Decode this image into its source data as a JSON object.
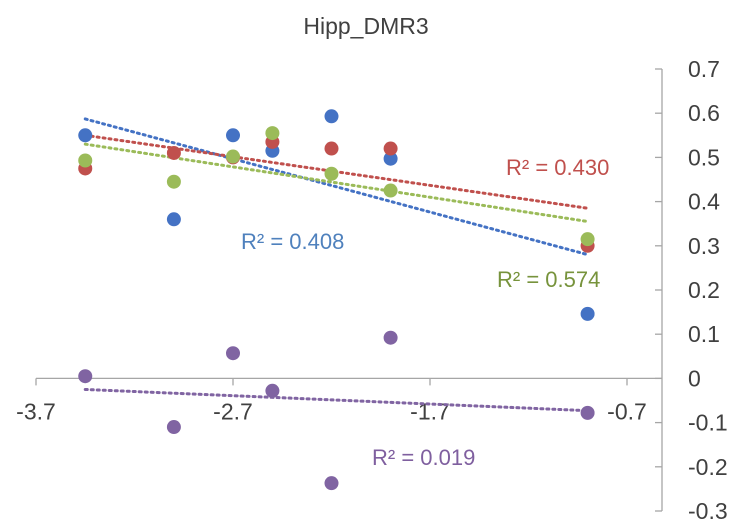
{
  "chart_data": {
    "type": "scatter",
    "title": "Hipp_DMR3",
    "xlabel": "",
    "ylabel": "",
    "xlim": [
      -3.7,
      -0.7
    ],
    "ylim": [
      -0.3,
      0.7
    ],
    "x_ticks": [
      "-3.7",
      "-2.7",
      "-1.7",
      "-0.7"
    ],
    "y_ticks": [
      "0.7",
      "0.6",
      "0.5",
      "0.4",
      "0.3",
      "0.2",
      "0.1",
      "0",
      "-0.1",
      "-0.2",
      "-0.3"
    ],
    "series": [
      {
        "color": "#4472c4",
        "points": [
          [
            -3.45,
            0.55
          ],
          [
            -3.0,
            0.36
          ],
          [
            -2.7,
            0.55
          ],
          [
            -2.5,
            0.515
          ],
          [
            -2.2,
            0.593
          ],
          [
            -1.9,
            0.497
          ],
          [
            -0.9,
            0.146
          ]
        ],
        "trend_color": "#4472c4",
        "trend": [
          [
            -3.45,
            0.587
          ],
          [
            -0.9,
            0.28
          ]
        ],
        "r2_label": "R² = 0.408"
      },
      {
        "color": "#c0504d",
        "points": [
          [
            -3.45,
            0.475
          ],
          [
            -3.0,
            0.51
          ],
          [
            -2.7,
            0.5
          ],
          [
            -2.5,
            0.535
          ],
          [
            -2.2,
            0.52
          ],
          [
            -1.9,
            0.52
          ],
          [
            -0.9,
            0.3
          ]
        ],
        "trend_color": "#c0504d",
        "trend": [
          [
            -3.45,
            0.55
          ],
          [
            -0.9,
            0.385
          ]
        ],
        "r2_label": "R² = 0.430"
      },
      {
        "color": "#9bbb59",
        "points": [
          [
            -3.45,
            0.493
          ],
          [
            -3.0,
            0.445
          ],
          [
            -2.7,
            0.502
          ],
          [
            -2.5,
            0.555
          ],
          [
            -2.2,
            0.463
          ],
          [
            -1.9,
            0.425
          ],
          [
            -0.9,
            0.315
          ]
        ],
        "trend_color": "#9bbb59",
        "trend": [
          [
            -3.45,
            0.53
          ],
          [
            -0.9,
            0.355
          ]
        ],
        "r2_label": "R² = 0.574"
      },
      {
        "color": "#8064a2",
        "points": [
          [
            -3.45,
            0.005
          ],
          [
            -3.0,
            -0.11
          ],
          [
            -2.7,
            0.057
          ],
          [
            -2.5,
            -0.028
          ],
          [
            -2.2,
            -0.237
          ],
          [
            -1.9,
            0.092
          ],
          [
            -0.9,
            -0.078
          ]
        ],
        "trend_color": "#8064a2",
        "trend": [
          [
            -3.45,
            -0.025
          ],
          [
            -0.9,
            -0.073
          ]
        ],
        "r2_label": "R² = 0.019"
      }
    ],
    "r2_label_colors": [
      "#4f81bd",
      "#c0504d",
      "#77933c",
      "#7f5f9f"
    ],
    "grid": false,
    "legend": "none"
  }
}
